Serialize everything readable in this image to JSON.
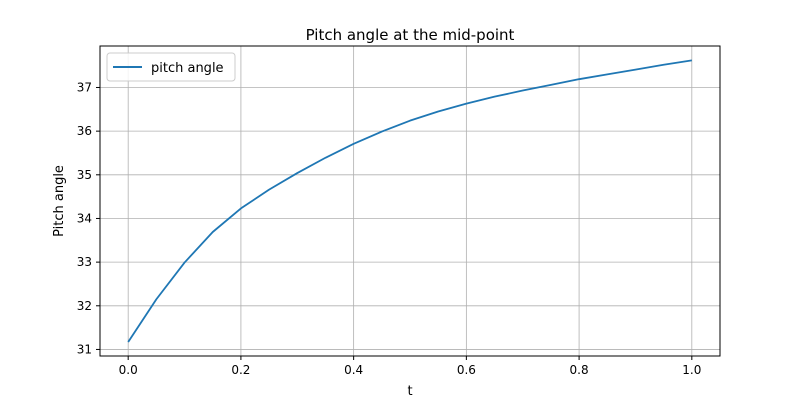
{
  "chart_data": {
    "type": "line",
    "title": "Pitch angle at the mid-point",
    "xlabel": "t",
    "ylabel": "Pitch angle",
    "xlim": [
      -0.05,
      1.05
    ],
    "ylim": [
      30.85,
      37.95
    ],
    "xticks": [
      0.0,
      0.2,
      0.4,
      0.6,
      0.8,
      1.0
    ],
    "xtick_labels": [
      "0.0",
      "0.2",
      "0.4",
      "0.6",
      "0.8",
      "1.0"
    ],
    "yticks": [
      31,
      32,
      33,
      34,
      35,
      36,
      37
    ],
    "ytick_labels": [
      "31",
      "32",
      "33",
      "34",
      "35",
      "36",
      "37"
    ],
    "grid": true,
    "legend_position": "upper-left",
    "series": [
      {
        "name": "pitch angle",
        "color": "#1f77b4",
        "x": [
          0.0,
          0.05,
          0.1,
          0.15,
          0.2,
          0.25,
          0.3,
          0.35,
          0.4,
          0.45,
          0.5,
          0.55,
          0.6,
          0.65,
          0.7,
          0.75,
          0.8,
          0.85,
          0.9,
          0.95,
          1.0
        ],
        "y": [
          31.17,
          32.15,
          32.99,
          33.69,
          34.23,
          34.66,
          35.04,
          35.39,
          35.71,
          35.99,
          36.24,
          36.45,
          36.63,
          36.79,
          36.93,
          37.06,
          37.19,
          37.3,
          37.41,
          37.52,
          37.62
        ]
      }
    ]
  }
}
